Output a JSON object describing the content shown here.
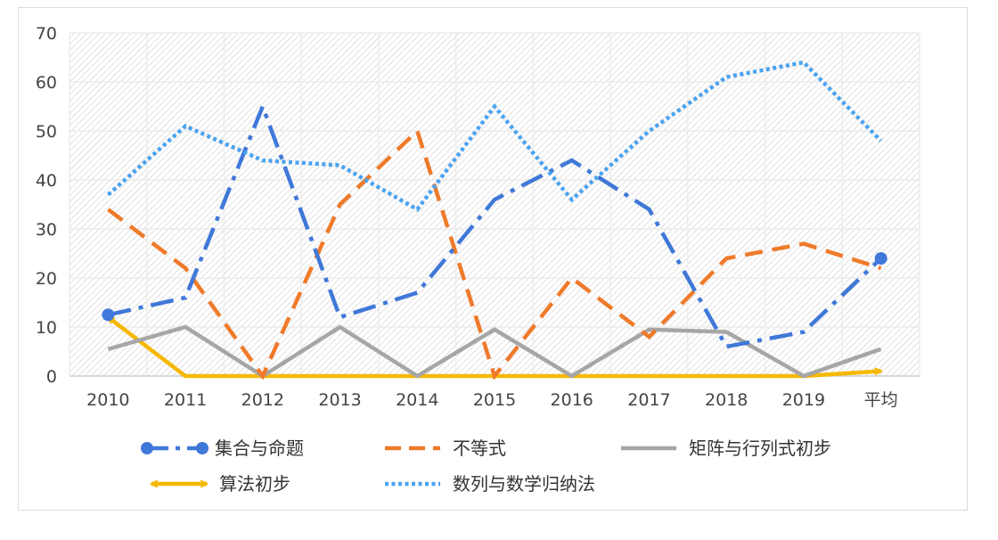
{
  "chart_data": {
    "type": "line",
    "categories": [
      "2010",
      "2011",
      "2012",
      "2013",
      "2014",
      "2015",
      "2016",
      "2017",
      "2018",
      "2019",
      "平均"
    ],
    "ylim": [
      0,
      70
    ],
    "yticks": [
      0,
      10,
      20,
      30,
      40,
      50,
      60,
      70
    ],
    "grid": true,
    "legend_position": "bottom",
    "series": [
      {
        "name": "集合与命题",
        "color": "#3f78d8",
        "style": "dash-dot",
        "markers_at_ends": true,
        "values": [
          12.5,
          16,
          55,
          12,
          17,
          36,
          44,
          34,
          6,
          9,
          24
        ]
      },
      {
        "name": "不等式",
        "color": "#ef7a2a",
        "style": "dashed",
        "values": [
          34,
          22,
          0,
          35,
          50,
          0,
          20,
          8,
          24,
          27,
          22
        ]
      },
      {
        "name": "矩阵与行列式初步",
        "color": "#a6a6a6",
        "style": "solid",
        "values": [
          5.5,
          10,
          0,
          10,
          0,
          9.5,
          0,
          9.5,
          9,
          0,
          5.5
        ]
      },
      {
        "name": "算法初步",
        "color": "#f5b800",
        "style": "solid-arrow",
        "values": [
          12,
          0,
          0,
          0,
          0,
          0,
          0,
          0,
          0,
          0,
          1
        ]
      },
      {
        "name": "数列与数学归纳法",
        "color": "#4aa3f0",
        "style": "dotted",
        "values": [
          37,
          51,
          44,
          43,
          34,
          55,
          36,
          50,
          61,
          64,
          48
        ]
      }
    ]
  }
}
